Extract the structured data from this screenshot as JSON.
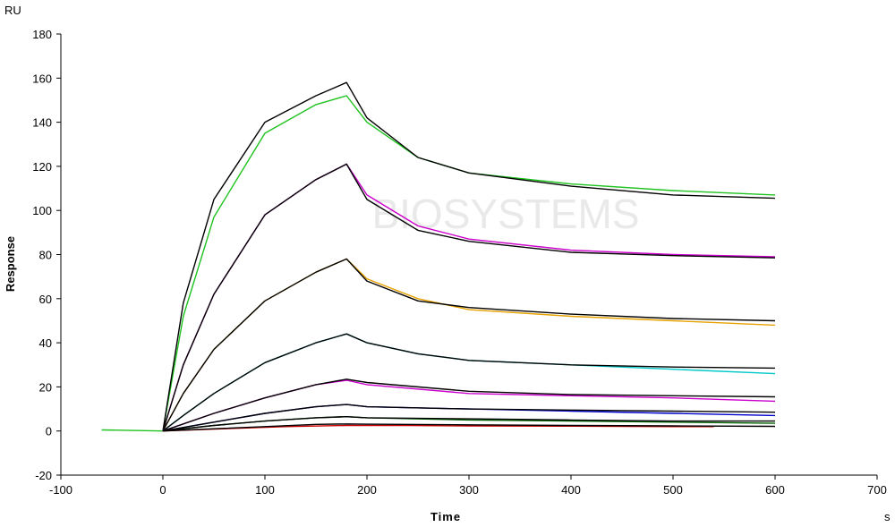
{
  "chart_data": {
    "type": "line",
    "xlabel": "Time",
    "ylabel": "Response",
    "x_unit": "s",
    "y_unit": "RU",
    "xlim": [
      -100,
      700
    ],
    "ylim": [
      -20,
      180
    ],
    "x_ticks": [
      -100,
      0,
      100,
      200,
      300,
      400,
      500,
      600,
      700
    ],
    "y_ticks": [
      -20,
      0,
      20,
      40,
      60,
      80,
      100,
      120,
      140,
      160,
      180
    ],
    "watermark": "BIOSYSTEMS",
    "series": [
      {
        "color": "#1fc21f",
        "x": [
          -60,
          0,
          20,
          50,
          100,
          150,
          180,
          200,
          250,
          300,
          400,
          500,
          600
        ],
        "y": [
          0.5,
          0,
          52,
          97,
          135,
          148,
          152,
          140,
          124,
          117,
          112,
          109,
          107
        ]
      },
      {
        "color": "#000000",
        "x": [
          0,
          20,
          50,
          100,
          150,
          180,
          200,
          250,
          300,
          400,
          500,
          600
        ],
        "y": [
          0,
          58,
          105,
          140,
          152,
          158,
          142,
          124,
          117,
          111,
          107,
          105.5
        ]
      },
      {
        "color": "#cc00cc",
        "x": [
          0,
          20,
          50,
          100,
          150,
          180,
          200,
          250,
          300,
          400,
          500,
          600
        ],
        "y": [
          0,
          30,
          62,
          98,
          114,
          121,
          107,
          93,
          87,
          82,
          80,
          79
        ]
      },
      {
        "color": "#000000",
        "x": [
          0,
          20,
          50,
          100,
          150,
          180,
          200,
          250,
          300,
          400,
          500,
          600
        ],
        "y": [
          0,
          30,
          62,
          98,
          114,
          121,
          105,
          91,
          86,
          81,
          79.5,
          78.5
        ]
      },
      {
        "color": "#e8a200",
        "x": [
          0,
          20,
          50,
          100,
          150,
          180,
          200,
          250,
          300,
          400,
          500,
          600
        ],
        "y": [
          0,
          17,
          37,
          59,
          72,
          78,
          69,
          60,
          55,
          52,
          50,
          48
        ]
      },
      {
        "color": "#000000",
        "x": [
          0,
          20,
          50,
          100,
          150,
          180,
          200,
          250,
          300,
          400,
          500,
          600
        ],
        "y": [
          0,
          17,
          37,
          59,
          72,
          78,
          68,
          59,
          56,
          53,
          51,
          50
        ]
      },
      {
        "color": "#00c8c8",
        "x": [
          0,
          20,
          50,
          100,
          150,
          180,
          200,
          250,
          300,
          400,
          500,
          600
        ],
        "y": [
          0,
          7,
          17,
          31,
          40,
          44,
          40,
          35,
          32,
          30,
          28,
          26
        ]
      },
      {
        "color": "#000000",
        "x": [
          0,
          20,
          50,
          100,
          150,
          180,
          200,
          250,
          300,
          400,
          500,
          600
        ],
        "y": [
          0,
          7,
          17,
          31,
          40,
          44,
          40,
          35,
          32,
          30,
          29,
          28.5
        ]
      },
      {
        "color": "#cc00cc",
        "x": [
          0,
          50,
          100,
          150,
          180,
          200,
          300,
          400,
          500,
          600
        ],
        "y": [
          0,
          8,
          15,
          21,
          23,
          21,
          17,
          16,
          15,
          13.5
        ]
      },
      {
        "color": "#000000",
        "x": [
          0,
          50,
          100,
          150,
          180,
          200,
          300,
          400,
          500,
          600
        ],
        "y": [
          0,
          8,
          15,
          21,
          23.5,
          22,
          18,
          16.5,
          16,
          15.5
        ]
      },
      {
        "color": "#0000cc",
        "x": [
          0,
          50,
          100,
          150,
          180,
          200,
          300,
          400,
          500,
          600
        ],
        "y": [
          0,
          4,
          8,
          11,
          12,
          11,
          10,
          9,
          8,
          7
        ]
      },
      {
        "color": "#000000",
        "x": [
          0,
          50,
          100,
          150,
          180,
          200,
          300,
          400,
          500,
          600
        ],
        "y": [
          0,
          4,
          8,
          11,
          12,
          11,
          10,
          9.5,
          9,
          8.5
        ]
      },
      {
        "color": "#006400",
        "x": [
          0,
          50,
          100,
          150,
          180,
          200,
          300,
          400,
          500,
          600
        ],
        "y": [
          0,
          2.5,
          4.5,
          6,
          6.5,
          6,
          5,
          4.5,
          4,
          3.5
        ]
      },
      {
        "color": "#000000",
        "x": [
          0,
          50,
          100,
          150,
          180,
          200,
          300,
          400,
          500,
          600
        ],
        "y": [
          0,
          2.5,
          4.5,
          6,
          6.5,
          6,
          5.5,
          5,
          4.5,
          4.5
        ]
      },
      {
        "color": "#cc0000",
        "x": [
          0,
          60,
          120,
          180,
          240,
          300,
          400,
          500,
          540
        ],
        "y": [
          0,
          1,
          2,
          2.5,
          2.5,
          2.3,
          2.2,
          2,
          2
        ]
      },
      {
        "color": "#000000",
        "x": [
          0,
          50,
          100,
          150,
          180,
          200,
          300,
          400,
          500,
          600
        ],
        "y": [
          0,
          1,
          2,
          3,
          3.2,
          3.1,
          2.8,
          2.5,
          2.3,
          2.1
        ]
      }
    ]
  }
}
